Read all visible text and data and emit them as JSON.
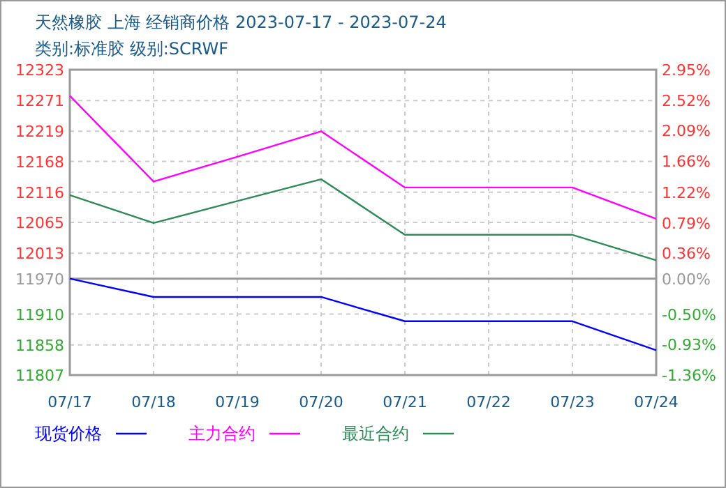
{
  "chart_data": {
    "type": "line",
    "title": "天然橡胶 上海 经销商价格 2023-07-17 - 2023-07-24",
    "subtitle": "类别:标准胶 级别:SCRWF",
    "x": [
      "2023-07-17",
      "2023-07-18",
      "2023-07-19",
      "2023-07-20",
      "2023-07-21",
      "2023-07-23",
      "2023-07-24"
    ],
    "series": [
      {
        "name": "现货价格",
        "color": "#0000ff",
        "values": [
          11970,
          11939,
          11939,
          11939,
          11898,
          11898,
          11849
        ]
      },
      {
        "name": "主力合约",
        "color": "#ff00ff",
        "values": [
          12279,
          12134,
          12176,
          12219,
          12124,
          12124,
          12071
        ]
      },
      {
        "name": "最近合约",
        "color": "#2e8b57",
        "values": [
          12111,
          12064,
          12101,
          12138,
          12044,
          12044,
          12001
        ]
      }
    ],
    "xlim": [
      "2023-07-17",
      "2023-07-24"
    ],
    "xticks": [
      {
        "value": "2023-07-17",
        "label": "07/17"
      },
      {
        "value": "2023-07-18",
        "label": "07/18"
      },
      {
        "value": "2023-07-19",
        "label": "07/19"
      },
      {
        "value": "2023-07-20",
        "label": "07/20"
      },
      {
        "value": "2023-07-21",
        "label": "07/21"
      },
      {
        "value": "2023-07-22",
        "label": "07/22"
      },
      {
        "value": "2023-07-23",
        "label": "07/23"
      },
      {
        "value": "2023-07-24",
        "label": "07/24"
      }
    ],
    "ylim": [
      11807,
      12323
    ],
    "yticks": [
      11807,
      11858,
      11910,
      11970,
      12013,
      12065,
      12116,
      12168,
      12219,
      12271,
      12323
    ],
    "y2lim": [
      -1.36,
      2.95
    ],
    "y2ticks": [
      {
        "value": -1.36,
        "label": "-1.36%"
      },
      {
        "value": -0.93,
        "label": "-0.93%"
      },
      {
        "value": -0.5,
        "label": "-0.50%"
      },
      {
        "value": 0,
        "label": "0.00%"
      },
      {
        "value": 0.36,
        "label": "0.36%"
      },
      {
        "value": 0.79,
        "label": "0.79%"
      },
      {
        "value": 1.22,
        "label": "1.22%"
      },
      {
        "value": 1.66,
        "label": "1.66%"
      },
      {
        "value": 2.09,
        "label": "2.09%"
      },
      {
        "value": 2.52,
        "label": "2.52%"
      },
      {
        "value": 2.95,
        "label": "2.95%"
      }
    ],
    "ref_lines": [
      {
        "axis": "y2",
        "value": 0,
        "color": "#999999"
      }
    ],
    "grid": true,
    "legend": "bottom",
    "marker": "none",
    "line_style": "solid"
  }
}
